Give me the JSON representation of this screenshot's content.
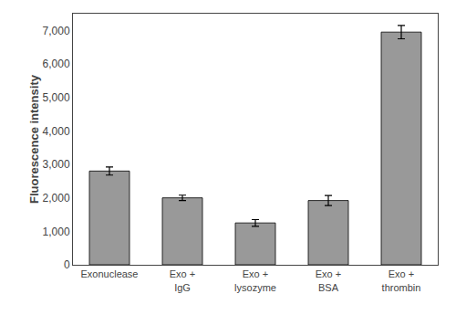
{
  "chart_data": {
    "type": "bar",
    "categories": [
      "Exonuclease",
      "Exo +\nIgG",
      "Exo +\nlysozyme",
      "Exo +\nBSA",
      "Exo +\nthrombin"
    ],
    "values": [
      2800,
      2000,
      1250,
      1920,
      6950
    ],
    "errors": [
      120,
      80,
      100,
      150,
      200
    ],
    "color": "#999999",
    "ylabel": "Fluorescence intensity",
    "ylim": [
      0,
      7500
    ],
    "yticks": [
      0,
      {
        "value": 1000,
        "label": "1,000"
      },
      {
        "value": 2000,
        "label": "2,000"
      },
      {
        "value": 3000,
        "label": "3,000"
      },
      {
        "value": 4000,
        "label": "4,000"
      },
      {
        "value": 5000,
        "label": "5,000"
      },
      {
        "value": 6000,
        "label": "6,000"
      },
      {
        "value": 7000,
        "label": "7,000"
      }
    ],
    "grid": false
  }
}
